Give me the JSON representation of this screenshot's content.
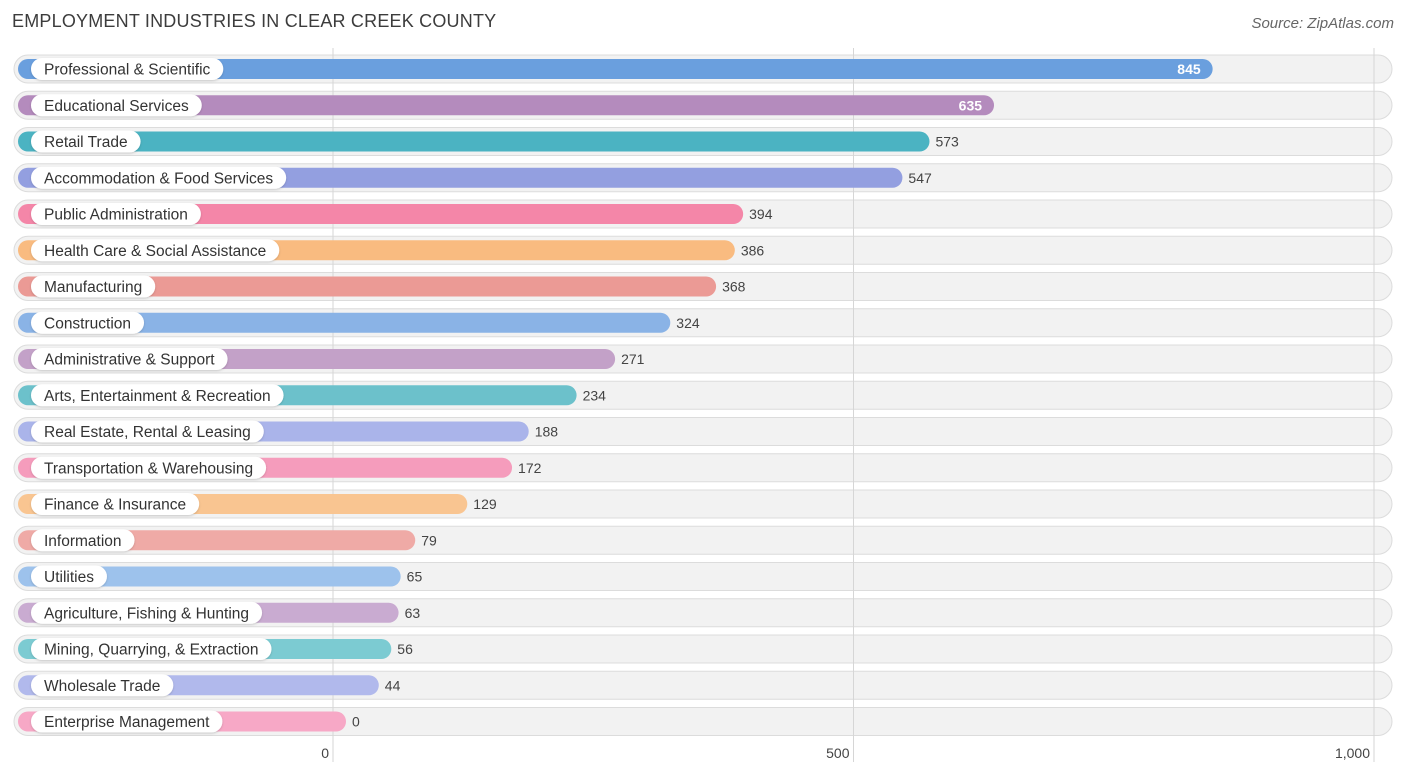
{
  "header": {
    "title": "EMPLOYMENT INDUSTRIES IN CLEAR CREEK COUNTY",
    "source": "Source: ZipAtlas.com"
  },
  "chart_data": {
    "type": "bar",
    "orientation": "horizontal",
    "title": "EMPLOYMENT INDUSTRIES IN CLEAR CREEK COUNTY",
    "xlabel": "",
    "ylabel": "",
    "xlim": [
      0,
      1000
    ],
    "xticks": [
      0,
      500,
      1000
    ],
    "xtick_labels": [
      "0",
      "500",
      "1,000"
    ],
    "grid": true,
    "categories": [
      "Professional & Scientific",
      "Educational Services",
      "Retail Trade",
      "Accommodation & Food Services",
      "Public Administration",
      "Health Care & Social Assistance",
      "Manufacturing",
      "Construction",
      "Administrative & Support",
      "Arts, Entertainment & Recreation",
      "Real Estate, Rental & Leasing",
      "Transportation & Warehousing",
      "Finance & Insurance",
      "Information",
      "Utilities",
      "Agriculture, Fishing & Hunting",
      "Mining, Quarrying, & Extraction",
      "Wholesale Trade",
      "Enterprise Management"
    ],
    "values": [
      845,
      635,
      573,
      547,
      394,
      386,
      368,
      324,
      271,
      234,
      188,
      172,
      129,
      79,
      65,
      63,
      56,
      44,
      0
    ],
    "value_labels": [
      "845",
      "635",
      "573",
      "547",
      "394",
      "386",
      "368",
      "324",
      "271",
      "234",
      "188",
      "172",
      "129",
      "79",
      "65",
      "63",
      "56",
      "44",
      "0"
    ],
    "colors": [
      "#6a9fde",
      "#b48bbd",
      "#4bb3c2",
      "#939fe0",
      "#f486a8",
      "#f9bb80",
      "#eb9a95",
      "#8ab3e6",
      "#c3a1c8",
      "#6cc1cb",
      "#aab4ea",
      "#f59cbc",
      "#f9c591",
      "#efaaa6",
      "#9dc2ec",
      "#c9abd1",
      "#7ccbd2",
      "#b1b9ec",
      "#f7a8c6"
    ]
  }
}
